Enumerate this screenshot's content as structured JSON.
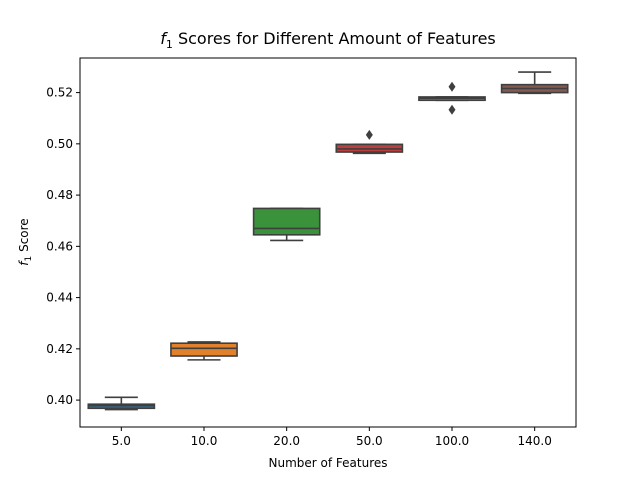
{
  "chart_data": {
    "type": "box",
    "title_prefix": "f",
    "title_subscript": "1",
    "title_suffix": " Scores for Different Amount of Features",
    "xlabel": "Number of Features",
    "ylabel_prefix": "f",
    "ylabel_subscript": "1",
    "ylabel_suffix": " Score",
    "ylim": [
      0.3895,
      0.5335
    ],
    "yticks": [
      0.4,
      0.42,
      0.44,
      0.46,
      0.48,
      0.5,
      0.52
    ],
    "ytick_labels": [
      "0.40",
      "0.42",
      "0.44",
      "0.46",
      "0.48",
      "0.50",
      "0.52"
    ],
    "categories": [
      "5.0",
      "10.0",
      "20.0",
      "50.0",
      "100.0",
      "140.0"
    ],
    "boxes": [
      {
        "category": "5.0",
        "whisker_low": 0.3963,
        "q1": 0.3968,
        "median": 0.3978,
        "q3": 0.3984,
        "whisker_high": 0.4011,
        "outliers": [],
        "color": "#3274a1"
      },
      {
        "category": "10.0",
        "whisker_low": 0.4157,
        "q1": 0.4172,
        "median": 0.4202,
        "q3": 0.4222,
        "whisker_high": 0.4227,
        "outliers": [],
        "color": "#e1812c"
      },
      {
        "category": "20.0",
        "whisker_low": 0.4623,
        "q1": 0.4645,
        "median": 0.467,
        "q3": 0.4748,
        "whisker_high": 0.4748,
        "outliers": [],
        "color": "#3a923a"
      },
      {
        "category": "50.0",
        "whisker_low": 0.4963,
        "q1": 0.4968,
        "median": 0.498,
        "q3": 0.4998,
        "whisker_high": 0.4998,
        "outliers": [
          0.5035
        ],
        "color": "#c03d3e"
      },
      {
        "category": "100.0",
        "whisker_low": 0.517,
        "q1": 0.517,
        "median": 0.5178,
        "q3": 0.5183,
        "whisker_high": 0.5183,
        "outliers": [
          0.5223,
          0.5133
        ],
        "color": "#9372b2"
      },
      {
        "category": "140.0",
        "whisker_low": 0.5197,
        "q1": 0.52,
        "median": 0.5216,
        "q3": 0.5231,
        "whisker_high": 0.528,
        "outliers": [],
        "color": "#845b53"
      }
    ]
  }
}
